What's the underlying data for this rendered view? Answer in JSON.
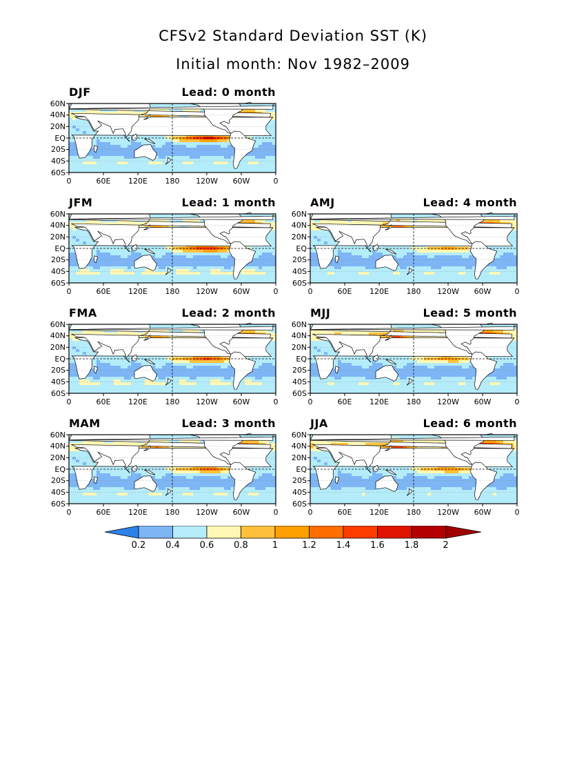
{
  "header": {
    "title": "CFSv2 Standard Deviation SST (K)",
    "subtitle": "Initial month: Nov 1982–2009"
  },
  "axes": {
    "y_labels": [
      "60N",
      "40N",
      "20N",
      "EQ",
      "20S",
      "40S",
      "60S"
    ],
    "x_labels": [
      "0",
      "60E",
      "120E",
      "180",
      "120W",
      "60W",
      "0"
    ]
  },
  "panels": [
    {
      "season": "DJF",
      "lead": "Lead: 0 month",
      "warm_pac": 1.0,
      "warm_nh": 0.6,
      "warm_sh": 0.4
    },
    {
      "season": "JFM",
      "lead": "Lead: 1 month",
      "warm_pac": 0.95,
      "warm_nh": 0.6,
      "warm_sh": 0.55
    },
    {
      "season": "FMA",
      "lead": "Lead: 2 month",
      "warm_pac": 0.8,
      "warm_nh": 0.65,
      "warm_sh": 0.5
    },
    {
      "season": "MAM",
      "lead": "Lead: 3 month",
      "warm_pac": 0.7,
      "warm_nh": 0.7,
      "warm_sh": 0.4
    },
    {
      "season": "AMJ",
      "lead": "Lead: 4 month",
      "warm_pac": 0.5,
      "warm_nh": 0.8,
      "warm_sh": 0.35
    },
    {
      "season": "MJJ",
      "lead": "Lead: 5 month",
      "warm_pac": 0.55,
      "warm_nh": 0.9,
      "warm_sh": 0.35
    },
    {
      "season": "JJA",
      "lead": "Lead: 6 month",
      "warm_pac": 0.6,
      "warm_nh": 1.0,
      "warm_sh": 0.3
    }
  ],
  "colorbar": {
    "labels": [
      "0.2",
      "0.4",
      "0.6",
      "0.8",
      "1",
      "1.2",
      "1.4",
      "1.6",
      "1.8",
      "2"
    ],
    "colors": [
      "#2d82e8",
      "#7db5f5",
      "#b4ecfa",
      "#fff8b4",
      "#ffc03c",
      "#ffa000",
      "#ff6e00",
      "#ff3c00",
      "#e01400",
      "#b40000",
      "#a00000"
    ]
  }
}
